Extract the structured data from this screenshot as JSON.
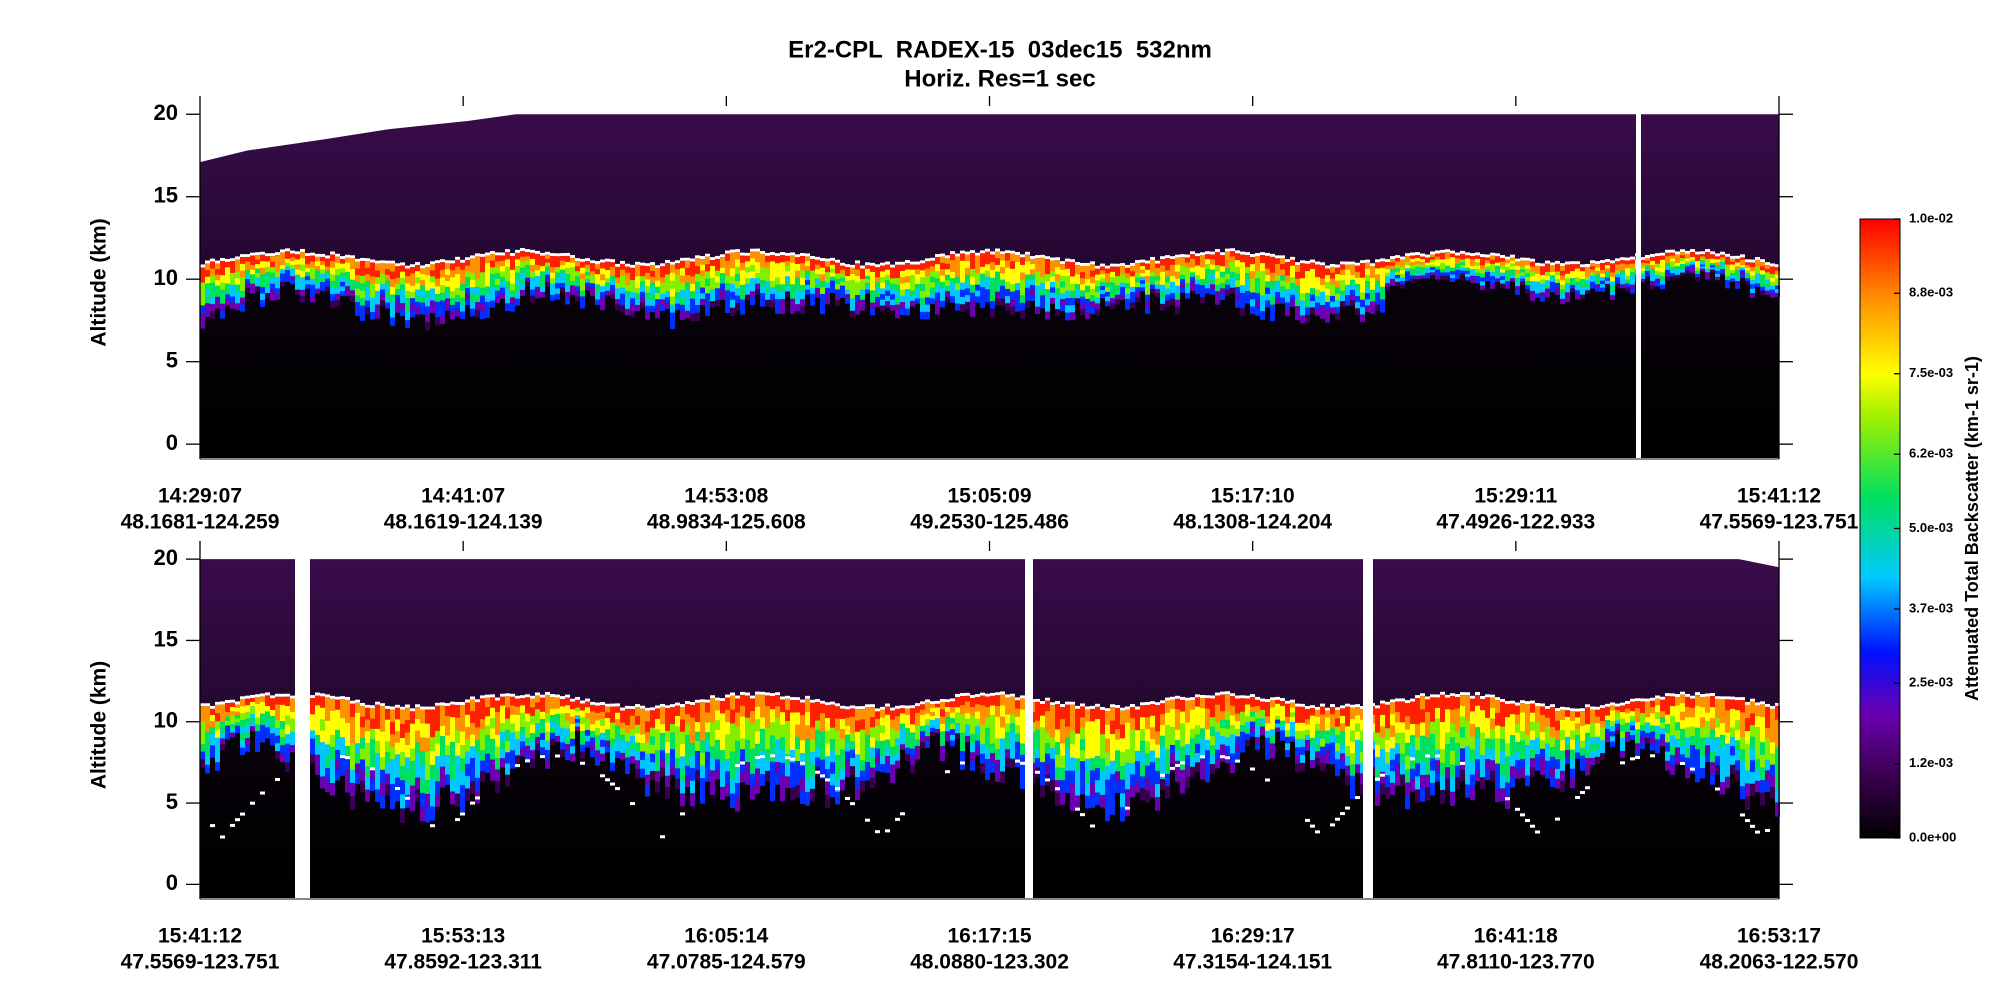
{
  "chart_data": [
    {
      "type": "heatmap",
      "title": "Er2-CPL  RADEX-15  03dec15  532nm",
      "subtitle": "Horiz. Res=1 sec",
      "ylabel": "Altitude (km)",
      "ylim": [
        -0.9,
        20.5
      ],
      "yticks": [
        0,
        5,
        10,
        15,
        20
      ],
      "categories": [
        "14:29:07",
        "14:41:07",
        "14:53:08",
        "15:05:09",
        "15:17:10",
        "15:29:11",
        "15:41:12"
      ],
      "locations": [
        "48.1681-124.259",
        "48.1619-124.139",
        "48.9834-125.608",
        "49.2530-125.486",
        "48.1308-124.204",
        "47.4926-122.933",
        "47.5569-123.751"
      ],
      "colorbar": {
        "label": "Attenuated Total Backscatter (km-1 sr-1)",
        "lim": [
          0,
          0.01
        ],
        "ticks": [
          {
            "value": 0,
            "label": "0.0e+00"
          },
          {
            "value": 0.0012,
            "label": "1.2e-03"
          },
          {
            "value": 0.0025,
            "label": "2.5e-03"
          },
          {
            "value": 0.0037,
            "label": "3.7e-03"
          },
          {
            "value": 0.005,
            "label": "5.0e-03"
          },
          {
            "value": 0.0062,
            "label": "6.2e-03"
          },
          {
            "value": 0.0075,
            "label": "7.5e-03"
          },
          {
            "value": 0.0088,
            "label": "8.8e-03"
          },
          {
            "value": 0.01,
            "label": "1.0e-02"
          }
        ]
      }
    },
    {
      "type": "heatmap",
      "ylabel": "Altitude (km)",
      "ylim": [
        -0.9,
        20.5
      ],
      "yticks": [
        0,
        5,
        10,
        15,
        20
      ],
      "categories": [
        "15:41:12",
        "15:53:13",
        "16:05:14",
        "16:17:15",
        "16:29:17",
        "16:41:18",
        "16:53:17"
      ],
      "locations": [
        "47.5569-123.751",
        "47.8592-123.311",
        "47.0785-124.579",
        "48.0880-123.302",
        "47.3154-124.151",
        "47.8110-123.770",
        "48.2063-122.570"
      ]
    }
  ]
}
